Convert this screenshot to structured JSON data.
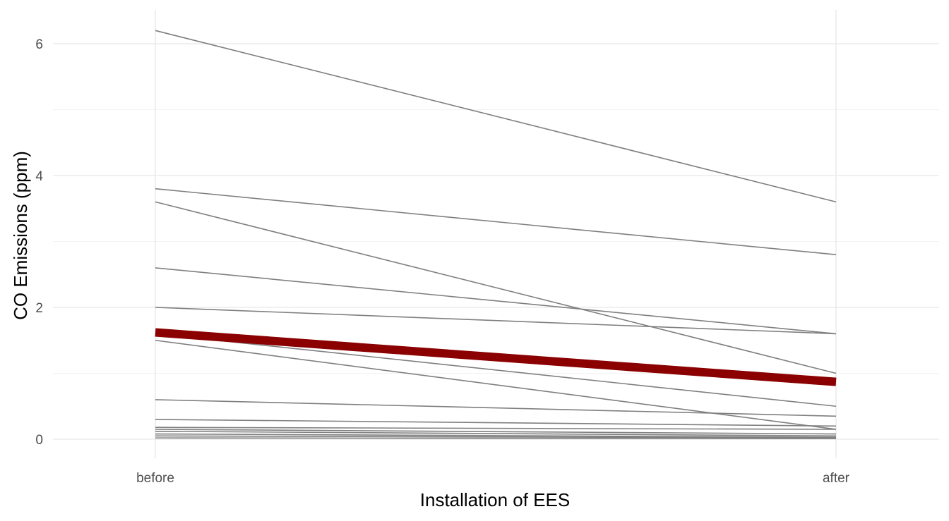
{
  "chart_data": {
    "type": "line",
    "title": "",
    "xlabel": "Installation of EES",
    "ylabel": "CO Emissions (ppm)",
    "categories": [
      "before",
      "after"
    ],
    "y_ticks": [
      "0",
      "2",
      "4",
      "6"
    ],
    "ylim": [
      -0.28,
      6.5
    ],
    "grid": true,
    "legend": "none",
    "colors": {
      "individual": "#7f7f7f",
      "mean": "#8b0000",
      "grid": "#ebebeb"
    },
    "series": [
      {
        "values": [
          6.2,
          3.6
        ]
      },
      {
        "values": [
          3.8,
          2.8
        ]
      },
      {
        "values": [
          3.6,
          1.0
        ]
      },
      {
        "values": [
          2.6,
          1.6
        ]
      },
      {
        "values": [
          2.0,
          1.6
        ]
      },
      {
        "values": [
          1.6,
          0.5
        ]
      },
      {
        "values": [
          1.5,
          0.15
        ]
      },
      {
        "values": [
          0.6,
          0.35
        ]
      },
      {
        "values": [
          0.3,
          0.2
        ]
      },
      {
        "values": [
          0.18,
          0.15
        ]
      },
      {
        "values": [
          0.15,
          0.08
        ]
      },
      {
        "values": [
          0.12,
          0.05
        ]
      },
      {
        "values": [
          0.08,
          0.03
        ]
      },
      {
        "values": [
          0.05,
          0.02
        ]
      },
      {
        "values": [
          0.02,
          0.01
        ]
      }
    ],
    "mean_series": {
      "values": [
        1.62,
        0.87
      ]
    }
  }
}
